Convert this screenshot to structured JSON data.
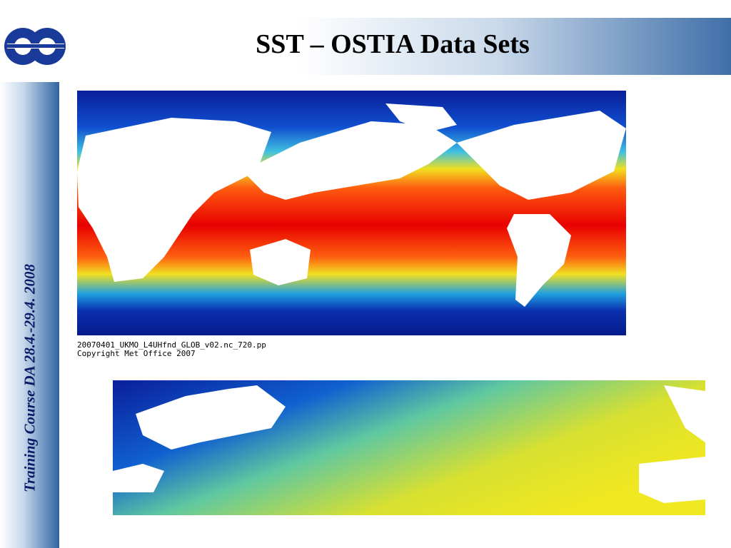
{
  "header": {
    "title": "SST – OSTIA Data Sets"
  },
  "sidebar": {
    "text": "Training Course DA 28.4.-29.4. 2008"
  },
  "figure": {
    "caption_lines": [
      "20070401_UKMO_L4UHfnd_GLOB_v02.nc_720.pp",
      "Copyright Met Office 2007"
    ]
  }
}
